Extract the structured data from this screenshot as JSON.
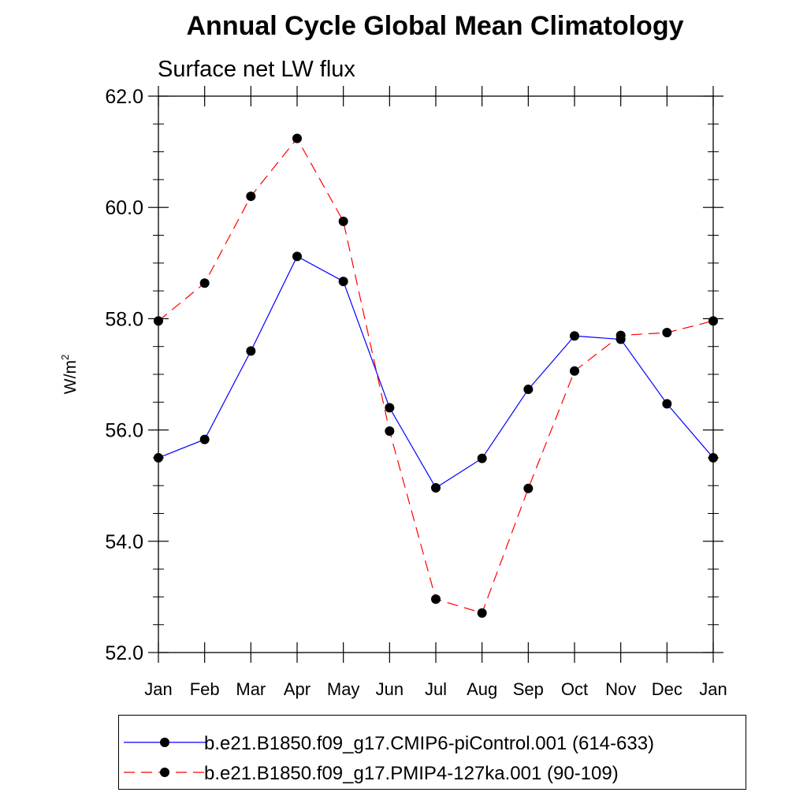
{
  "chart_data": {
    "type": "line",
    "title": "Annual Cycle Global Mean Climatology",
    "subtitle": "Surface net LW flux",
    "ylabel_base": "W/m",
    "ylabel_sup": "2",
    "categories": [
      "Jan",
      "Feb",
      "Mar",
      "Apr",
      "May",
      "Jun",
      "Jul",
      "Aug",
      "Sep",
      "Oct",
      "Nov",
      "Dec",
      "Jan"
    ],
    "ylim": [
      52.0,
      62.0
    ],
    "yticks": [
      "52.0",
      "54.0",
      "56.0",
      "58.0",
      "60.0",
      "62.0"
    ],
    "grid": false,
    "legend_position": "bottom",
    "series": [
      {
        "name": "b.e21.B1850.f09_g17.CMIP6-piControl.001 (614-633)",
        "color": "#0000ff",
        "dash": "solid",
        "values": [
          55.5,
          55.83,
          57.42,
          59.12,
          58.67,
          56.4,
          54.96,
          55.49,
          56.73,
          57.69,
          57.63,
          56.47,
          55.5
        ]
      },
      {
        "name": "b.e21.B1850.f09_g17.PMIP4-127ka.001 (90-109)",
        "color": "#ff0000",
        "dash": "dashed",
        "values": [
          57.96,
          58.64,
          60.2,
          61.24,
          59.75,
          55.98,
          52.96,
          52.71,
          54.95,
          57.06,
          57.7,
          57.75,
          57.96
        ]
      }
    ]
  }
}
